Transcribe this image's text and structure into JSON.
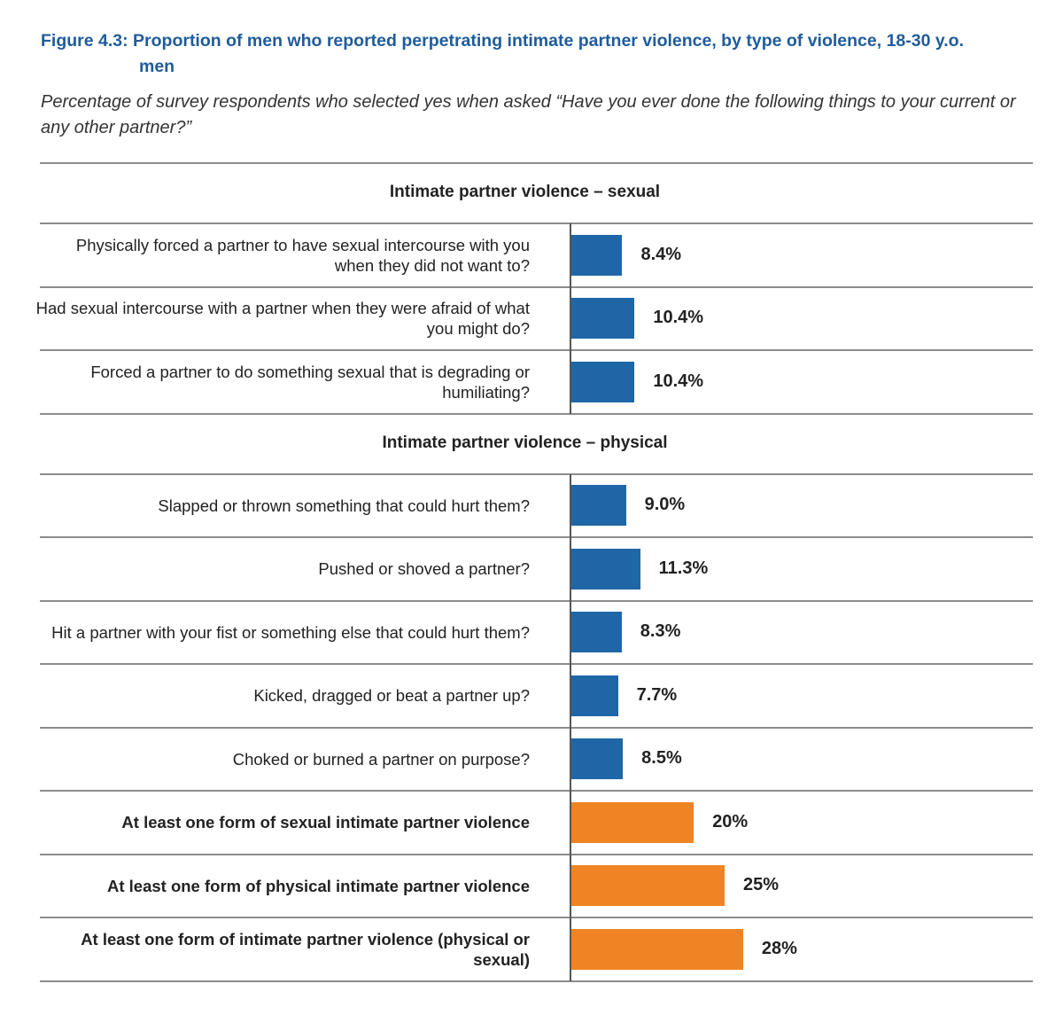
{
  "chart_data": {
    "type": "bar",
    "orientation": "horizontal",
    "title": "Figure 4.3: Proportion of men who reported perpetrating intimate partner violence, by type of violence, 18-30 y.o. men",
    "subtitle": "Percentage of survey respondents who selected yes when asked “Have you ever done the following things to your current or any other partner?”",
    "xlim": [
      0,
      75
    ],
    "sections": [
      {
        "title": "Intimate partner violence – sexual",
        "color": "#1f66a6",
        "categories": [
          "Physically forced a partner to have sexual intercourse with you when they did not want to?",
          "Had sexual intercourse with a partner when they were afraid of what you might do?",
          "Forced a partner to do something sexual that is degrading or humiliating?"
        ],
        "values": [
          8.4,
          10.4,
          10.4
        ],
        "value_labels": [
          "8.4%",
          "10.4%",
          "10.4%"
        ]
      },
      {
        "title": "Intimate partner violence – physical",
        "color": "#1f66a6",
        "categories": [
          "Slapped or thrown something that could hurt them?",
          "Pushed or shoved a partner?",
          "Hit a partner with your fist or something else that could hurt them?",
          "Kicked, dragged or beat a partner up?",
          "Choked or burned a partner on purpose?"
        ],
        "values": [
          9.0,
          11.3,
          8.3,
          7.7,
          8.5
        ],
        "value_labels": [
          "9.0%",
          "11.3%",
          "8.3%",
          "7.7%",
          "8.5%"
        ]
      },
      {
        "color": "#f08424",
        "categories": [
          "At least one form of sexual intimate partner violence",
          "At least one form of physical intimate partner violence",
          "At least one form of intimate partner violence (physical or sexual)"
        ],
        "values": [
          20,
          25,
          28
        ],
        "value_labels": [
          "20%",
          "25%",
          "28%"
        ]
      }
    ]
  }
}
